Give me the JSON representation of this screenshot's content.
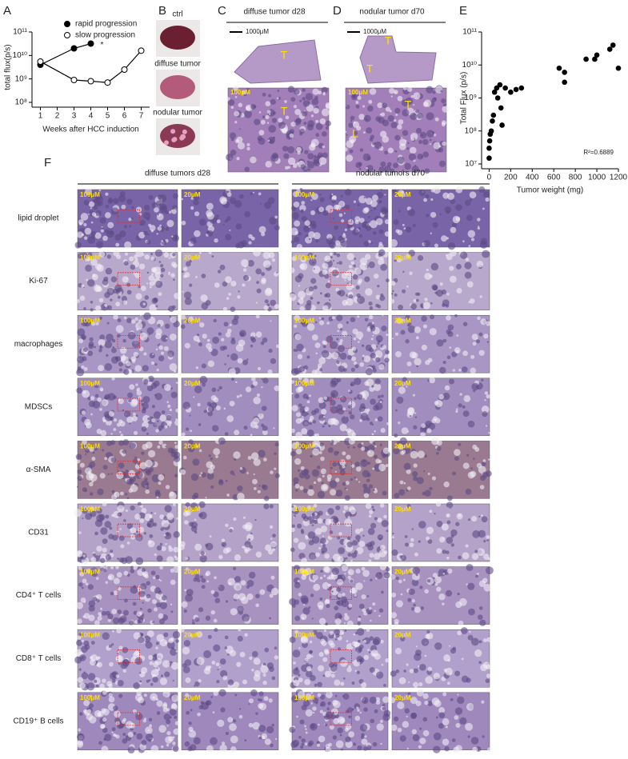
{
  "panel_labels": [
    "A",
    "B",
    "C",
    "D",
    "E",
    "F"
  ],
  "chart_data": [
    {
      "type": "line",
      "y_label": "total flux(p/s)",
      "x_label": "Weeks after HCC induction",
      "log_scale": true,
      "xlim": [
        0.5,
        7.5
      ],
      "xticks": [
        1,
        2,
        3,
        4,
        5,
        6,
        7
      ],
      "ylim": [
        100000000,
        100000000000
      ],
      "yticks": [
        {
          "value": 100000000,
          "label": "10⁸"
        },
        {
          "value": 1000000000,
          "label": "10⁹"
        },
        {
          "value": 10000000000,
          "label": "10¹⁰"
        },
        {
          "value": 100000000000,
          "label": "10¹¹"
        }
      ],
      "annotation": "*",
      "series": [
        {
          "name": "rapid progression",
          "color": "#000000",
          "fill": "#000000",
          "x": [
            1,
            3,
            4
          ],
          "values": [
            4000000000,
            20000000000,
            32000000000
          ]
        },
        {
          "name": "slow progression",
          "color": "#000000",
          "fill": "#ffffff",
          "x": [
            1,
            3,
            4,
            5,
            6,
            7
          ],
          "values": [
            5500000000,
            900000000,
            800000000,
            700000000,
            2500000000,
            16000000000
          ]
        }
      ]
    },
    {
      "type": "scatter",
      "y_label": "Total Flux (p/s)",
      "x_label": "Tumor weight (mg)",
      "log_scale": true,
      "color": "#000000",
      "xlim": [
        -70,
        1200
      ],
      "xticks": [
        0,
        200,
        400,
        600,
        800,
        1000,
        1200
      ],
      "ylim": [
        10000000,
        100000000000
      ],
      "yticks": [
        {
          "value": 10000000,
          "label": "10⁷"
        },
        {
          "value": 100000000,
          "label": "10⁸"
        },
        {
          "value": 1000000000,
          "label": "10⁹"
        },
        {
          "value": 10000000000,
          "label": "10¹⁰"
        },
        {
          "value": 100000000000,
          "label": "10¹¹"
        }
      ],
      "annotation": "R²=0.6889",
      "x": [
        0,
        0,
        5,
        10,
        20,
        30,
        40,
        50,
        70,
        80,
        100,
        110,
        120,
        150,
        200,
        250,
        300,
        650,
        700,
        700,
        900,
        980,
        1000,
        1120,
        1150,
        1200
      ],
      "values": [
        15000000,
        30000000,
        50000000,
        80000000,
        100000000,
        200000000,
        300000000,
        1500000000,
        2000000000,
        1000000000,
        2500000000,
        500000000,
        150000000,
        2000000000,
        1500000000,
        1800000000,
        2000000000,
        8000000000,
        3000000000,
        6000000000,
        15000000000,
        15000000000,
        20000000000,
        30000000000,
        40000000000,
        8000000000
      ]
    }
  ],
  "panel_b": {
    "labels": [
      "ctrl",
      "diffuse tumor",
      "nodular tumor"
    ]
  },
  "panel_c": {
    "title": "diffuse tumor d28",
    "scale": "1000μM",
    "zoom_scale": "100μM",
    "marks": [
      "T",
      "T"
    ]
  },
  "panel_d": {
    "title": "nodular tumor d70",
    "scale": "1000μM",
    "zoom_scale": "100μM",
    "marks": [
      "T",
      "T",
      "T",
      "L"
    ]
  },
  "panel_f": {
    "headers": [
      "diffuse tumors d28",
      "nodular tumors d70"
    ],
    "scales": [
      "100μM",
      "20μM"
    ],
    "rows": [
      "lipid droplet",
      "Ki-67",
      "macrophages",
      "MDSCs",
      "α-SMA",
      "CD31",
      "CD4⁺ T cells",
      "CD8⁺ T cells",
      "CD19⁺ B cells"
    ]
  }
}
